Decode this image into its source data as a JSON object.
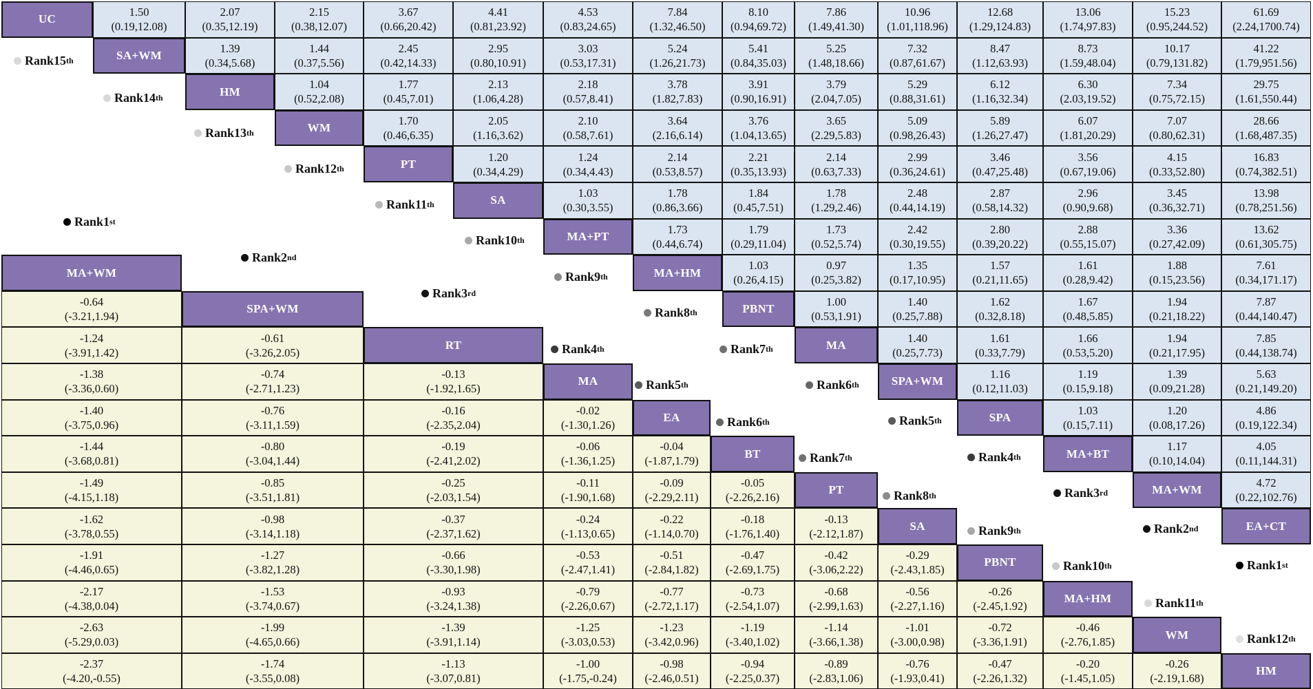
{
  "matrix": {
    "n": 14,
    "upper_diagonal": [
      "UC",
      "SA+WM",
      "HM",
      "WM",
      "PT",
      "SA",
      "MA+PT",
      "MA+HM",
      "PBNT",
      "MA",
      "SPA+WM",
      "SPA",
      "MA+BT",
      "MA+WM",
      "EA+CT"
    ],
    "lower_diagonal": [
      "MA+WM",
      "SPA+WM",
      "RT",
      "MA",
      "EA",
      "BT",
      "PT",
      "SA",
      "PBNT",
      "MA+HM",
      "WM",
      "HM"
    ],
    "upper_cells": [
      [
        [
          "1.50",
          "(0.19,12.08)"
        ],
        [
          "2.07",
          "(0.35,12.19)"
        ],
        [
          "2.15",
          "(0.38,12.07)"
        ],
        [
          "3.67",
          "(0.66,20.42)"
        ],
        [
          "4.41",
          "(0.81,23.92)"
        ],
        [
          "4.53",
          "(0.83,24.65)"
        ],
        [
          "7.84",
          "(1.32,46.50)"
        ],
        [
          "8.10",
          "(0.94,69.72)"
        ],
        [
          "7.86",
          "(1.49,41.30)"
        ],
        [
          "10.96",
          "(1.01,118.96)"
        ],
        [
          "12.68",
          "(1.29,124.83)"
        ],
        [
          "13.06",
          "(1.74,97.83)"
        ],
        [
          "15.23",
          "(0.95,244.52)"
        ],
        [
          "61.69",
          "(2.24,1700.74)"
        ]
      ],
      [
        [
          "1.39",
          "(0.34,5.68)"
        ],
        [
          "1.44",
          "(0.37,5.56)"
        ],
        [
          "2.45",
          "(0.42,14.33)"
        ],
        [
          "2.95",
          "(0.80,10.91)"
        ],
        [
          "3.03",
          "(0.53,17.31)"
        ],
        [
          "5.24",
          "(1.26,21.73)"
        ],
        [
          "5.41",
          "(0.84,35.03)"
        ],
        [
          "5.25",
          "(1.48,18.66)"
        ],
        [
          "7.32",
          "(0.87,61.67)"
        ],
        [
          "8.47",
          "(1.12,63.93)"
        ],
        [
          "8.73",
          "(1.59,48.04)"
        ],
        [
          "10.17",
          "(0.79,131.82)"
        ],
        [
          "41.22",
          "(1.79,951.56)"
        ]
      ],
      [
        [
          "1.04",
          "(0.52,2.08)"
        ],
        [
          "1.77",
          "(0.45,7.01)"
        ],
        [
          "2.13",
          "(1.06,4.28)"
        ],
        [
          "2.18",
          "(0.57,8.41)"
        ],
        [
          "3.78",
          "(1.82,7.83)"
        ],
        [
          "3.91",
          "(0.90,16.91)"
        ],
        [
          "3.79",
          "(2.04,7.05)"
        ],
        [
          "5.29",
          "(0.88,31.61)"
        ],
        [
          "6.12",
          "(1.16,32.34)"
        ],
        [
          "6.30",
          "(2.03,19.52)"
        ],
        [
          "7.34",
          "(0.75,72.15)"
        ],
        [
          "29.75",
          "(1.61,550.44)"
        ]
      ],
      [
        [
          "1.70",
          "(0.46,6.35)"
        ],
        [
          "2.05",
          "(1.16,3.62)"
        ],
        [
          "2.10",
          "(0.58,7.61)"
        ],
        [
          "3.64",
          "(2.16,6.14)"
        ],
        [
          "3.76",
          "(1.04,13.65)"
        ],
        [
          "3.65",
          "(2.29,5.83)"
        ],
        [
          "5.09",
          "(0.98,26.43)"
        ],
        [
          "5.89",
          "(1.26,27.47)"
        ],
        [
          "6.07",
          "(1.81,20.29)"
        ],
        [
          "7.07",
          "(0.80,62.31)"
        ],
        [
          "28.66",
          "(1.68,487.35)"
        ]
      ],
      [
        [
          "1.20",
          "(0.34,4.29)"
        ],
        [
          "1.24",
          "(0.34,4.43)"
        ],
        [
          "2.14",
          "(0.53,8.57)"
        ],
        [
          "2.21",
          "(0.35,13.93)"
        ],
        [
          "2.14",
          "(0.63,7.33)"
        ],
        [
          "2.99",
          "(0.36,24.61)"
        ],
        [
          "3.46",
          "(0.47,25.48)"
        ],
        [
          "3.56",
          "(0.67,19.06)"
        ],
        [
          "4.15",
          "(0.33,52.80)"
        ],
        [
          "16.83",
          "(0.74,382.51)"
        ]
      ],
      [
        [
          "1.03",
          "(0.30,3.55)"
        ],
        [
          "1.78",
          "(0.86,3.66)"
        ],
        [
          "1.84",
          "(0.45,7.51)"
        ],
        [
          "1.78",
          "(1.29,2.46)"
        ],
        [
          "2.48",
          "(0.44,14.19)"
        ],
        [
          "2.87",
          "(0.58,14.32)"
        ],
        [
          "2.96",
          "(0.90,9.68)"
        ],
        [
          "3.45",
          "(0.36,32.71)"
        ],
        [
          "13.98",
          "(0.78,251.56)"
        ]
      ],
      [
        [
          "1.73",
          "(0.44,6.74)"
        ],
        [
          "1.79",
          "(0.29,11.04)"
        ],
        [
          "1.73",
          "(0.52,5.74)"
        ],
        [
          "2.42",
          "(0.30,19.55)"
        ],
        [
          "2.80",
          "(0.39,20.22)"
        ],
        [
          "2.88",
          "(0.55,15.07)"
        ],
        [
          "3.36",
          "(0.27,42.09)"
        ],
        [
          "13.62",
          "(0.61,305.75)"
        ]
      ],
      [
        [
          "1.03",
          "(0.26,4.15)"
        ],
        [
          "0.97",
          "(0.25,3.82)"
        ],
        [
          "1.35",
          "(0.17,10.95)"
        ],
        [
          "1.57",
          "(0.21,11.65)"
        ],
        [
          "1.61",
          "(0.28,9.42)"
        ],
        [
          "1.88",
          "(0.15,23.56)"
        ],
        [
          "7.61",
          "(0.34,171.17)"
        ]
      ],
      [
        [
          "1.00",
          "(0.53,1.91)"
        ],
        [
          "1.40",
          "(0.25,7.88)"
        ],
        [
          "1.62",
          "(0.32,8.18)"
        ],
        [
          "1.67",
          "(0.48,5.85)"
        ],
        [
          "1.94",
          "(0.21,18.22)"
        ],
        [
          "7.87",
          "(0.44,140.47)"
        ]
      ],
      [
        [
          "1.40",
          "(0.25,7.73)"
        ],
        [
          "1.61",
          "(0.33,7.79)"
        ],
        [
          "1.66",
          "(0.53,5.20)"
        ],
        [
          "1.94",
          "(0.21,17.95)"
        ],
        [
          "7.85",
          "(0.44,138.74)"
        ]
      ],
      [
        [
          "1.16",
          "(0.12,11.03)"
        ],
        [
          "1.19",
          "(0.15,9.18)"
        ],
        [
          "1.39",
          "(0.09,21.28)"
        ],
        [
          "5.63",
          "(0.21,149.20)"
        ]
      ],
      [
        [
          "1.03",
          "(0.15,7.11)"
        ],
        [
          "1.20",
          "(0.08,17.26)"
        ],
        [
          "4.86",
          "(0.19,122.34)"
        ]
      ],
      [
        [
          "1.17",
          "(0.10,14.04)"
        ],
        [
          "4.05",
          "(0.11,144.31)"
        ]
      ],
      [
        [
          "4.72",
          "(0.22,102.76)"
        ]
      ]
    ],
    "lower_cells": [
      [
        [
          "-0.64",
          "(-3.21,1.94)"
        ]
      ],
      [
        [
          "-1.24",
          "(-3.91,1.42)"
        ],
        [
          "-0.61",
          "(-3.26,2.05)"
        ]
      ],
      [
        [
          "-1.38",
          "(-3.36,0.60)"
        ],
        [
          "-0.74",
          "(-2.71,1.23)"
        ],
        [
          "-0.13",
          "(-1.92,1.65)"
        ]
      ],
      [
        [
          "-1.40",
          "(-3.75,0.96)"
        ],
        [
          "-0.76",
          "(-3.11,1.59)"
        ],
        [
          "-0.16",
          "(-2.35,2.04)"
        ],
        [
          "-0.02",
          "(-1.30,1.26)"
        ]
      ],
      [
        [
          "-1.44",
          "(-3.68,0.81)"
        ],
        [
          "-0.80",
          "(-3.04,1.44)"
        ],
        [
          "-0.19",
          "(-2.41,2.02)"
        ],
        [
          "-0.06",
          "(-1.36,1.25)"
        ],
        [
          "-0.04",
          "(-1.87,1.79)"
        ]
      ],
      [
        [
          "-1.49",
          "(-4.15,1.18)"
        ],
        [
          "-0.85",
          "(-3.51,1.81)"
        ],
        [
          "-0.25",
          "(-2.03,1.54)"
        ],
        [
          "-0.11",
          "(-1.90,1.68)"
        ],
        [
          "-0.09",
          "(-2.29,2.11)"
        ],
        [
          "-0.05",
          "(-2.26,2.16)"
        ]
      ],
      [
        [
          "-1.62",
          "(-3.78,0.55)"
        ],
        [
          "-0.98",
          "(-3.14,1.18)"
        ],
        [
          "-0.37",
          "(-2.37,1.62)"
        ],
        [
          "-0.24",
          "(-1.13,0.65)"
        ],
        [
          "-0.22",
          "(-1.14,0.70)"
        ],
        [
          "-0.18",
          "(-1.76,1.40)"
        ],
        [
          "-0.13",
          "(-2.12,1.87)"
        ]
      ],
      [
        [
          "-1.91",
          "(-4.46,0.65)"
        ],
        [
          "-1.27",
          "(-3.82,1.28)"
        ],
        [
          "-0.66",
          "(-3.30,1.98)"
        ],
        [
          "-0.53",
          "(-2.47,1.41)"
        ],
        [
          "-0.51",
          "(-2.84,1.82)"
        ],
        [
          "-0.47",
          "(-2.69,1.75)"
        ],
        [
          "-0.42",
          "(-3.06,2.22)"
        ],
        [
          "-0.29",
          "(-2.43,1.85)"
        ]
      ],
      [
        [
          "-2.17",
          "(-4.38,0.04)"
        ],
        [
          "-1.53",
          "(-3.74,0.67)"
        ],
        [
          "-0.93",
          "(-3.24,1.38)"
        ],
        [
          "-0.79",
          "(-2.26,0.67)"
        ],
        [
          "-0.77",
          "(-2.72,1.17)"
        ],
        [
          "-0.73",
          "(-2.54,1.07)"
        ],
        [
          "-0.68",
          "(-2.99,1.63)"
        ],
        [
          "-0.56",
          "(-2.27,1.16)"
        ],
        [
          "-0.26",
          "(-2.45,1.92)"
        ]
      ],
      [
        [
          "-2.63",
          "(-5.29,0.03)"
        ],
        [
          "-1.99",
          "(-4.65,0.66)"
        ],
        [
          "-1.39",
          "(-3.91,1.14)"
        ],
        [
          "-1.25",
          "(-3.03,0.53)"
        ],
        [
          "-1.23",
          "(-3.42,0.96)"
        ],
        [
          "-1.19",
          "(-3.40,1.02)"
        ],
        [
          "-1.14",
          "(-3.66,1.38)"
        ],
        [
          "-1.01",
          "(-3.00,0.98)"
        ],
        [
          "-0.72",
          "(-3.36,1.91)"
        ],
        [
          "-0.46",
          "(-2.76,1.85)"
        ]
      ],
      [
        [
          "-2.37",
          "(-4.20,-0.55)"
        ],
        [
          "-1.74",
          "(-3.55,0.08)"
        ],
        [
          "-1.13",
          "(-3.07,0.81)"
        ],
        [
          "-1.00",
          "(-1.75,-0.24)"
        ],
        [
          "-0.98",
          "(-2.46,0.51)"
        ],
        [
          "-0.94",
          "(-2.25,0.37)"
        ],
        [
          "-0.89",
          "(-2.83,1.06)"
        ],
        [
          "-0.76",
          "(-1.93,0.41)"
        ],
        [
          "-0.47",
          "(-2.26,1.32)"
        ],
        [
          "-0.20",
          "(-1.45,1.05)"
        ],
        [
          "-0.26",
          "(-2.19,1.68)"
        ]
      ]
    ]
  },
  "ranks_upper": [
    {
      "num": "15",
      "sup": "th",
      "color": "#d8d8d8"
    },
    {
      "num": "14",
      "sup": "th",
      "color": "#d8d8d8"
    },
    {
      "num": "13",
      "sup": "th",
      "color": "#d0d0d0"
    },
    {
      "num": "12",
      "sup": "th",
      "color": "#c8c8c8"
    },
    {
      "num": "11",
      "sup": "th",
      "color": "#b8b8b8"
    },
    {
      "num": "10",
      "sup": "th",
      "color": "#a8a8a8"
    },
    {
      "num": "9",
      "sup": "th",
      "color": "#8a8a8a"
    },
    {
      "num": "8",
      "sup": "th",
      "color": "#7a7a7a"
    },
    {
      "num": "7",
      "sup": "th",
      "color": "#707070"
    },
    {
      "num": "6",
      "sup": "th",
      "color": "#666666"
    },
    {
      "num": "5",
      "sup": "th",
      "color": "#5a5a5a"
    },
    {
      "num": "4",
      "sup": "th",
      "color": "#3a3a3a"
    },
    {
      "num": "3",
      "sup": "rd",
      "color": "#141414"
    },
    {
      "num": "2",
      "sup": "nd",
      "color": "#111111"
    },
    {
      "num": "1",
      "sup": "st",
      "color": "#000000"
    }
  ],
  "ranks_lower": [
    {
      "num": "1",
      "sup": "st",
      "color": "#000000"
    },
    {
      "num": "2",
      "sup": "nd",
      "color": "#111111"
    },
    {
      "num": "3",
      "sup": "rd",
      "color": "#141414"
    },
    {
      "num": "4",
      "sup": "th",
      "color": "#3a3a3a"
    },
    {
      "num": "5",
      "sup": "th",
      "color": "#5a5a5a"
    },
    {
      "num": "6",
      "sup": "th",
      "color": "#666666"
    },
    {
      "num": "7",
      "sup": "th",
      "color": "#707070"
    },
    {
      "num": "8",
      "sup": "th",
      "color": "#8a8a8a"
    },
    {
      "num": "9",
      "sup": "th",
      "color": "#a8a8a8"
    },
    {
      "num": "10",
      "sup": "th",
      "color": "#c8c8c8"
    },
    {
      "num": "11",
      "sup": "th",
      "color": "#d8d8d8"
    },
    {
      "num": "12",
      "sup": "th",
      "color": "#e0e0e0"
    }
  ],
  "rank_prefix": "Rank ",
  "colors": {
    "diagonal": "#8574b0",
    "upper_cell": "#dbe5f1",
    "lower_cell": "#f4f5dc",
    "border": "#111111"
  }
}
